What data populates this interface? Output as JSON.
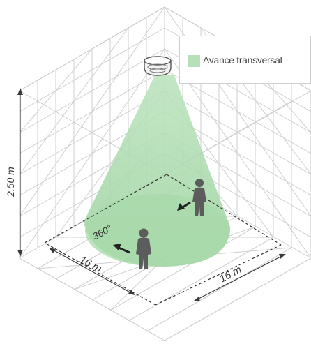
{
  "legend": {
    "label": "Avance transversal",
    "color": "#b7e0b9"
  },
  "height_label": "2.50 m",
  "angle_label": "360°",
  "width_label_left": "16 m",
  "width_label_right": "16 m",
  "colors": {
    "grid": "#c8c8c8",
    "cone": "#9fd4a2",
    "person": "#5c5c5c",
    "dim": "#3a3a3a"
  },
  "icons": [
    "ceiling-sensor-icon",
    "walking-person-icon",
    "direction-arrow-icon"
  ]
}
